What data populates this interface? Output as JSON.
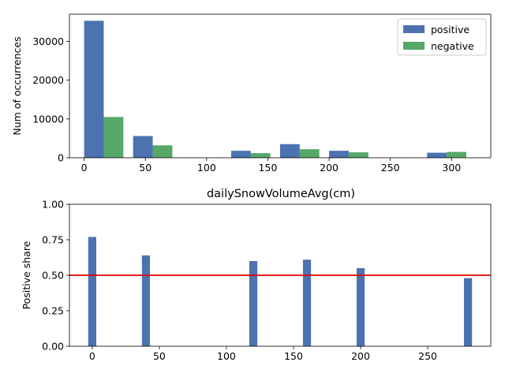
{
  "chart_data": [
    {
      "type": "bar",
      "title": "",
      "xlabel": "dailySnowVolumeAvg(cm)",
      "ylabel": "Num of occurrences",
      "xlim": [
        -12,
        332
      ],
      "ylim": [
        0,
        37000
      ],
      "xticks": [
        0,
        50,
        100,
        150,
        200,
        250,
        300
      ],
      "yticks": [
        0,
        10000,
        20000,
        30000
      ],
      "bin_width": 16,
      "legend_position": "top-right",
      "series": [
        {
          "name": "positive",
          "color": "#4c72b0",
          "x": [
            0,
            40,
            120,
            160,
            200,
            280
          ],
          "values": [
            35300,
            5600,
            1800,
            3500,
            1800,
            1300
          ]
        },
        {
          "name": "negative",
          "color": "#55a868",
          "x": [
            16,
            56,
            136,
            176,
            216,
            296
          ],
          "values": [
            10500,
            3200,
            1200,
            2200,
            1400,
            1500
          ]
        }
      ]
    },
    {
      "type": "bar",
      "title": "dailySnowVolumeAvg(cm)",
      "xlabel": "",
      "ylabel": "Positive share",
      "xlim": [
        -17,
        297
      ],
      "ylim": [
        0,
        1.0
      ],
      "xticks": [
        0,
        50,
        100,
        150,
        200,
        250
      ],
      "yticks": [
        0.0,
        0.25,
        0.5,
        0.75,
        1.0
      ],
      "ytick_labels": [
        "0.00",
        "0.25",
        "0.50",
        "0.75",
        "1.00"
      ],
      "bar_width": 6,
      "color": "#4c72b0",
      "reference_line": {
        "y": 0.5,
        "color": "#e00000"
      },
      "x": [
        0,
        40,
        120,
        160,
        200,
        280
      ],
      "values": [
        0.77,
        0.64,
        0.6,
        0.61,
        0.55,
        0.48
      ]
    }
  ]
}
